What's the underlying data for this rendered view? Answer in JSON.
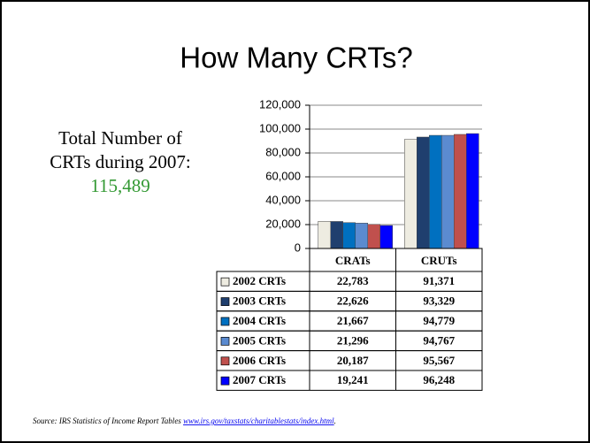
{
  "title": "How Many CRTs?",
  "side_note": {
    "lines": [
      "Total Number of",
      "CRTs during 2007:"
    ],
    "total": "115,489"
  },
  "source": {
    "text": "Source: IRS Statistics of Income Report Tables ",
    "link": "www.irs.gov/taxstats/charitablestats/index.html",
    "end": "."
  },
  "chart_data": {
    "type": "bar",
    "categories": [
      "CRATs",
      "CRUTs"
    ],
    "series": [
      {
        "name": "2002 CRTs",
        "color": "#eeece1",
        "values": [
          22783,
          91371
        ],
        "value_labels": [
          "22,783",
          "91,371"
        ]
      },
      {
        "name": "2003 CRTs",
        "color": "#1f3f6e",
        "values": [
          22626,
          93329
        ],
        "value_labels": [
          "22,626",
          "93,329"
        ]
      },
      {
        "name": "2004 CRTs",
        "color": "#0070c0",
        "values": [
          21667,
          94779
        ],
        "value_labels": [
          "21,667",
          "94,779"
        ]
      },
      {
        "name": "2005 CRTs",
        "color": "#5b8bd0",
        "values": [
          21296,
          94767
        ],
        "value_labels": [
          "21,296",
          "94,767"
        ]
      },
      {
        "name": "2006 CRTs",
        "color": "#c0504d",
        "values": [
          20187,
          95567
        ],
        "value_labels": [
          "20,187",
          "95,567"
        ]
      },
      {
        "name": "2007 CRTs",
        "color": "#0000ff",
        "values": [
          19241,
          96248
        ],
        "value_labels": [
          "19,241",
          "96,248"
        ]
      }
    ],
    "ylim": [
      0,
      120000
    ],
    "yticks": [
      0,
      {
        "value": 20000,
        "label": "20,000"
      },
      {
        "value": 40000,
        "label": "40,000"
      },
      {
        "value": 60000,
        "label": "60,000"
      },
      {
        "value": 80000,
        "label": "80,000"
      },
      {
        "value": 100000,
        "label": "100,000"
      },
      {
        "value": 120000,
        "label": "120,000"
      }
    ],
    "grid": true
  }
}
